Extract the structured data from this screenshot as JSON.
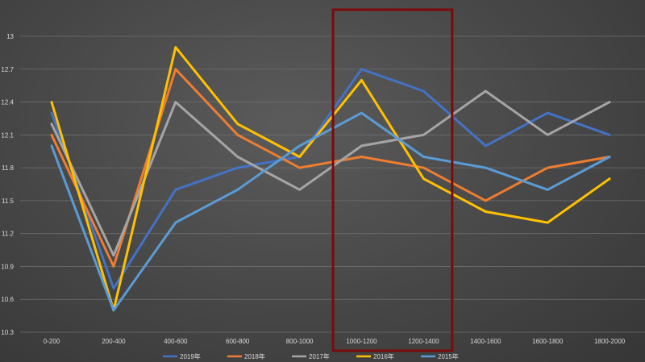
{
  "chart_data": {
    "type": "line",
    "title": "",
    "xlabel": "",
    "ylabel": "",
    "categories": [
      "0-200",
      "200-400",
      "400-600",
      "600-800",
      "800-1000",
      "1000-1200",
      "1200-1400",
      "1400-1600",
      "1600-1800",
      "1800-2000"
    ],
    "ylim": [
      10.3,
      13
    ],
    "yticks": [
      10.3,
      10.6,
      10.9,
      11.2,
      11.5,
      11.8,
      12.1,
      12.4,
      12.7,
      13
    ],
    "ytick_labels": [
      "10.3",
      "10.6",
      "10.9",
      "11.2",
      "11.5",
      "11.8",
      "12.1",
      "12.4",
      "12.7",
      "13"
    ],
    "grid": true,
    "legend_position": "bottom",
    "series": [
      {
        "name": "2019年",
        "color": "#4472c4",
        "values": [
          12.3,
          10.7,
          11.6,
          11.8,
          11.9,
          12.7,
          12.5,
          12.0,
          12.3,
          12.1
        ]
      },
      {
        "name": "2018年",
        "color": "#ed7d31",
        "values": [
          12.1,
          10.9,
          12.7,
          12.1,
          11.8,
          11.9,
          11.8,
          11.5,
          11.8,
          11.9
        ]
      },
      {
        "name": "2017年",
        "color": "#a5a5a5",
        "values": [
          12.2,
          11.0,
          12.4,
          11.9,
          11.6,
          12.0,
          12.1,
          12.5,
          12.1,
          12.4
        ]
      },
      {
        "name": "2016年",
        "color": "#ffc000",
        "values": [
          12.4,
          10.5,
          12.9,
          12.2,
          11.9,
          12.6,
          11.7,
          11.4,
          11.3,
          11.7
        ]
      },
      {
        "name": "2015年",
        "color": "#5b9bd5",
        "values": [
          12.0,
          10.5,
          11.3,
          11.6,
          12.0,
          12.3,
          11.9,
          11.8,
          11.6,
          11.9
        ]
      }
    ],
    "annotations": [
      {
        "type": "highlight-box",
        "color": "#7b0b0b",
        "covers_categories": [
          "1000-1200",
          "1200-1400"
        ]
      }
    ]
  }
}
